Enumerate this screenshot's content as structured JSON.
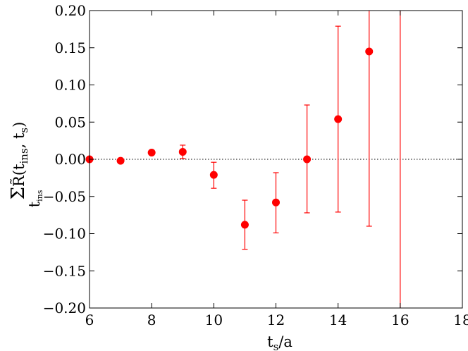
{
  "chart_data": {
    "type": "scatter",
    "xlabel": "t_s/a",
    "ylabel": "Σ_t_ins R̃(t_ins, t_s)",
    "xlim": [
      6,
      18
    ],
    "ylim": [
      -0.2,
      0.2
    ],
    "xticks": [
      6,
      8,
      10,
      12,
      14,
      16,
      18
    ],
    "xtick_labels": [
      "6",
      "8",
      "10",
      "12",
      "14",
      "16",
      "18"
    ],
    "yticks": [
      0.2,
      0.15,
      0.1,
      0.05,
      0.0,
      -0.05,
      -0.1,
      -0.15,
      -0.2
    ],
    "ytick_labels": [
      "0.20",
      "0.15",
      "0.10",
      "0.05",
      "0.00",
      "−0.05",
      "−0.10",
      "−0.15",
      "−0.20"
    ],
    "reference_line": {
      "y": 0.0,
      "style": "dotted",
      "color": "#000000"
    },
    "grid": false,
    "series": [
      {
        "color": "#ff0000",
        "marker": "circle",
        "points": [
          {
            "x": 6,
            "y": 0.0,
            "yerr_low": 0.0,
            "yerr_high": 0.0
          },
          {
            "x": 7,
            "y": -0.002,
            "yerr_low": -0.002,
            "yerr_high": -0.002
          },
          {
            "x": 8,
            "y": 0.009,
            "yerr_low": 0.006,
            "yerr_high": 0.012
          },
          {
            "x": 9,
            "y": 0.01,
            "yerr_low": 0.001,
            "yerr_high": 0.019
          },
          {
            "x": 10,
            "y": -0.021,
            "yerr_low": -0.039,
            "yerr_high": -0.004
          },
          {
            "x": 11,
            "y": -0.088,
            "yerr_low": -0.121,
            "yerr_high": -0.055
          },
          {
            "x": 12,
            "y": -0.058,
            "yerr_low": -0.099,
            "yerr_high": -0.018
          },
          {
            "x": 13,
            "y": 0.0,
            "yerr_low": -0.072,
            "yerr_high": 0.073
          },
          {
            "x": 14,
            "y": 0.054,
            "yerr_low": -0.071,
            "yerr_high": 0.179
          },
          {
            "x": 15,
            "y": 0.145,
            "yerr_low": -0.09,
            "yerr_high": 0.2
          },
          {
            "x": 16,
            "y": 0.2,
            "yerr_low": -0.2,
            "yerr_high": 0.2
          }
        ]
      }
    ]
  }
}
